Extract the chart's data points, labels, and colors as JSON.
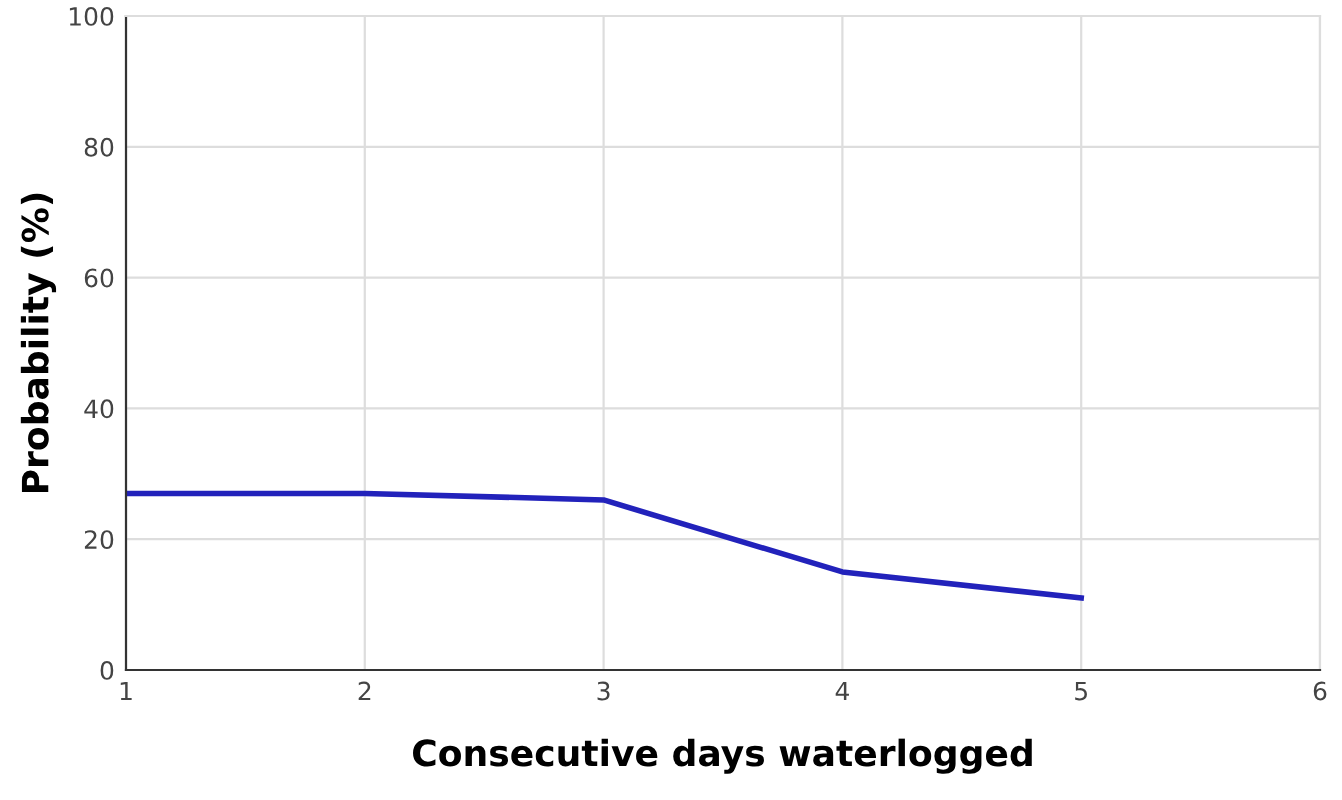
{
  "chart_data": {
    "type": "line",
    "xlabel": "Consecutive days waterlogged",
    "ylabel": "Probability (%)",
    "x": [
      1,
      2,
      3,
      4,
      5
    ],
    "series": [
      {
        "color": "#2222bb",
        "values": [
          27,
          27,
          26,
          15,
          11
        ]
      }
    ],
    "xlim": [
      1,
      6
    ],
    "ylim": [
      0,
      100
    ],
    "xticks": [
      1,
      2,
      3,
      4,
      5,
      6
    ],
    "yticks": [
      0,
      20,
      40,
      60,
      80,
      100
    ],
    "grid": true,
    "marker": "none",
    "line_style": "solid"
  }
}
